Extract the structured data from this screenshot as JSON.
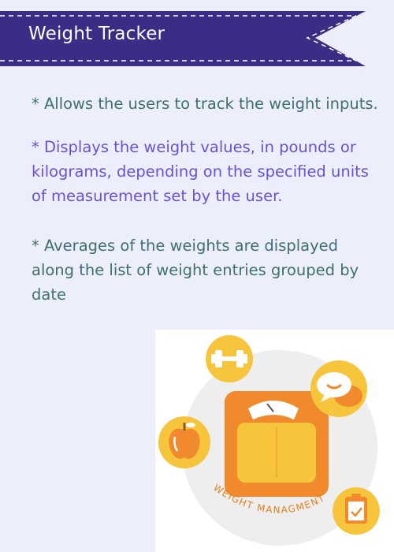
{
  "header": {
    "title": "Weight Tracker"
  },
  "features": [
    {
      "text": "* Allows the users to track the weight inputs."
    },
    {
      "text": "* Displays the weight values, in pounds or kilograms, depending on the specified units of measurement set by the user."
    },
    {
      "text": "* Averages of the weights are displayed along the list of weight entries grouped by date"
    }
  ],
  "illustration": {
    "label": "WEIGHT MANAGMENT",
    "icons": [
      "dumbbell-icon",
      "chat-bubbles-icon",
      "apple-icon",
      "clipboard-check-icon",
      "scale-icon"
    ]
  },
  "colors": {
    "banner": "#3b2d86",
    "background": "#eceefb",
    "text_teal": "#3f6f6e",
    "text_purple": "#6a52d6",
    "accent_orange": "#f08a2c",
    "accent_yellow": "#f7c53c"
  }
}
